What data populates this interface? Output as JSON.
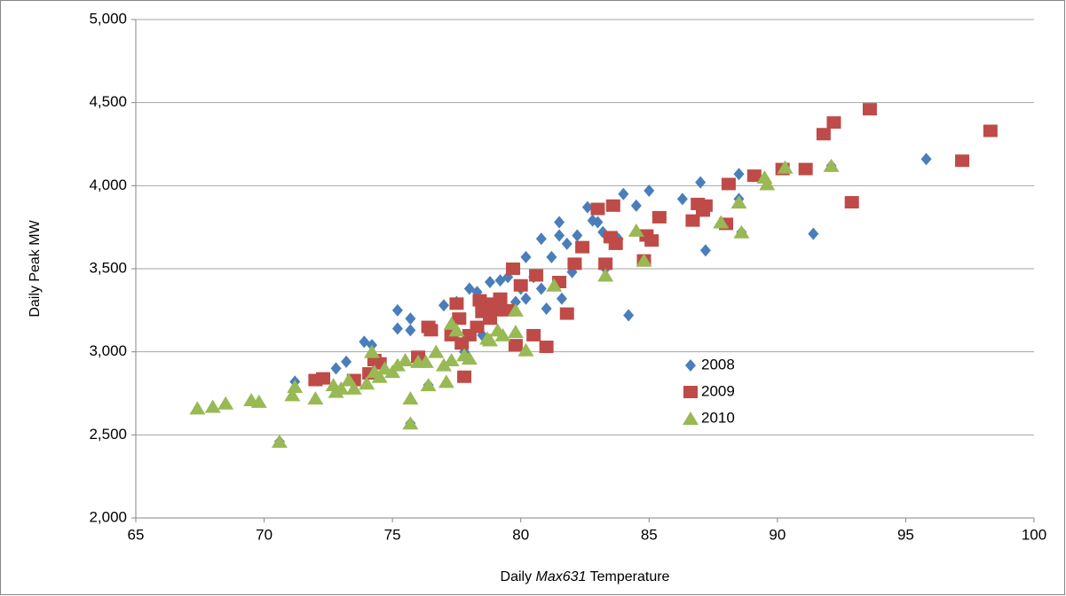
{
  "chart_data": {
    "type": "scatter",
    "xlabel_parts": [
      "Daily ",
      "Max631",
      " Temperature"
    ],
    "ylabel": "Daily Peak MW",
    "xlim": [
      65,
      100
    ],
    "xticks": [
      65,
      70,
      75,
      80,
      85,
      90,
      95,
      100
    ],
    "ylim": [
      2000,
      5000
    ],
    "yticks": [
      {
        "value": 2000,
        "label": "2,000"
      },
      {
        "value": 2500,
        "label": "2,500"
      },
      {
        "value": 3000,
        "label": "3,000"
      },
      {
        "value": 3500,
        "label": "3,500"
      },
      {
        "value": 4000,
        "label": "4,000"
      },
      {
        "value": 4500,
        "label": "4,500"
      },
      {
        "value": 5000,
        "label": "5,000"
      }
    ],
    "grid": true,
    "legend": "center",
    "series": [
      {
        "name": "2008",
        "color": "#4a7ebb",
        "marker": "diamond",
        "x": [
          70.6,
          71.2,
          72.8,
          73.2,
          73.9,
          74.2,
          75.2,
          75.2,
          75.7,
          75.7,
          76.5,
          77,
          77.5,
          78,
          78.3,
          78.8,
          79.2,
          79.5,
          79.8,
          80,
          80.2,
          80.2,
          80.5,
          80.8,
          80.8,
          81,
          81.2,
          81.5,
          81.5,
          81.6,
          81.8,
          82,
          82.2,
          82.6,
          82.8,
          83,
          83.2,
          83.3,
          83.8,
          84,
          84.2,
          84.5,
          84.8,
          85,
          86.3,
          87,
          87.2,
          88.5,
          88.5,
          88.6,
          91.4,
          92.1,
          95.8,
          75.7,
          76.4,
          79.7,
          78.5,
          77.8
        ],
        "values": [
          2460,
          2820,
          2900,
          2940,
          3060,
          3040,
          3250,
          3140,
          3200,
          3130,
          3150,
          3280,
          3300,
          3380,
          3360,
          3420,
          3430,
          3450,
          3300,
          3380,
          3570,
          3320,
          3450,
          3680,
          3380,
          3260,
          3570,
          3780,
          3700,
          3320,
          3650,
          3480,
          3700,
          3870,
          3790,
          3780,
          3720,
          3500,
          3680,
          3950,
          3220,
          3880,
          3550,
          3970,
          3920,
          4020,
          3610,
          4070,
          3920,
          3720,
          3710,
          4120,
          4160,
          2570,
          2800,
          3260,
          3100,
          3000
        ]
      },
      {
        "name": "2009",
        "color": "#be4b48",
        "marker": "square",
        "x": [
          72,
          72.3,
          73.5,
          74.1,
          74.3,
          74.5,
          76,
          76.4,
          76.5,
          77.3,
          77.5,
          77.6,
          77.7,
          77.8,
          78,
          78.3,
          78.4,
          78.5,
          78.7,
          78.8,
          79,
          79.2,
          79.5,
          79.7,
          79.8,
          80,
          80.5,
          80.6,
          81,
          81.5,
          81.8,
          82.1,
          82.4,
          83,
          83.3,
          83.5,
          83.6,
          83.7,
          84.8,
          84.9,
          85.1,
          85.4,
          86.7,
          86.9,
          87.1,
          87.2,
          88,
          88.1,
          89.1,
          90.2,
          91.1,
          91.8,
          92.2,
          92.9,
          93.6,
          97.2,
          98.3
        ],
        "values": [
          2830,
          2840,
          2830,
          2870,
          2950,
          2930,
          2970,
          3150,
          3130,
          3100,
          3290,
          3200,
          3050,
          2850,
          3100,
          3150,
          3310,
          3240,
          3290,
          3200,
          3250,
          3320,
          3250,
          3500,
          3040,
          3400,
          3100,
          3460,
          3030,
          3420,
          3230,
          3530,
          3630,
          3860,
          3530,
          3690,
          3880,
          3650,
          3550,
          3700,
          3670,
          3810,
          3790,
          3890,
          3850,
          3880,
          3770,
          4010,
          4060,
          4100,
          4100,
          4310,
          4380,
          3900,
          4460,
          4150,
          4330
        ]
      },
      {
        "name": "2010",
        "color": "#98b954",
        "marker": "triangle",
        "x": [
          67.4,
          68,
          68.5,
          69.5,
          69.8,
          70.6,
          71.1,
          71.2,
          72,
          72.7,
          72.8,
          73,
          73.3,
          73.5,
          74,
          74.2,
          74.3,
          74.5,
          74.7,
          75,
          75.2,
          75.5,
          75.7,
          75.7,
          76,
          76.3,
          76.4,
          76.7,
          77,
          77.1,
          77.3,
          77.3,
          77.5,
          77.8,
          78,
          78.7,
          78.8,
          79.1,
          79.3,
          79.8,
          79.8,
          80.2,
          81.3,
          83.3,
          84.5,
          84.8,
          87.8,
          88.5,
          88.6,
          89.5,
          89.6,
          90.3,
          92.1
        ],
        "values": [
          2660,
          2670,
          2690,
          2710,
          2700,
          2460,
          2740,
          2790,
          2720,
          2800,
          2760,
          2780,
          2830,
          2780,
          2810,
          3000,
          2880,
          2850,
          2900,
          2880,
          2920,
          2950,
          2720,
          2570,
          2940,
          2940,
          2800,
          3000,
          2920,
          2820,
          3170,
          2950,
          3130,
          2980,
          2960,
          3080,
          3070,
          3130,
          3100,
          3120,
          3250,
          3010,
          3400,
          3460,
          3730,
          3550,
          3780,
          3900,
          3720,
          4050,
          4010,
          4110,
          4120
        ]
      }
    ]
  }
}
